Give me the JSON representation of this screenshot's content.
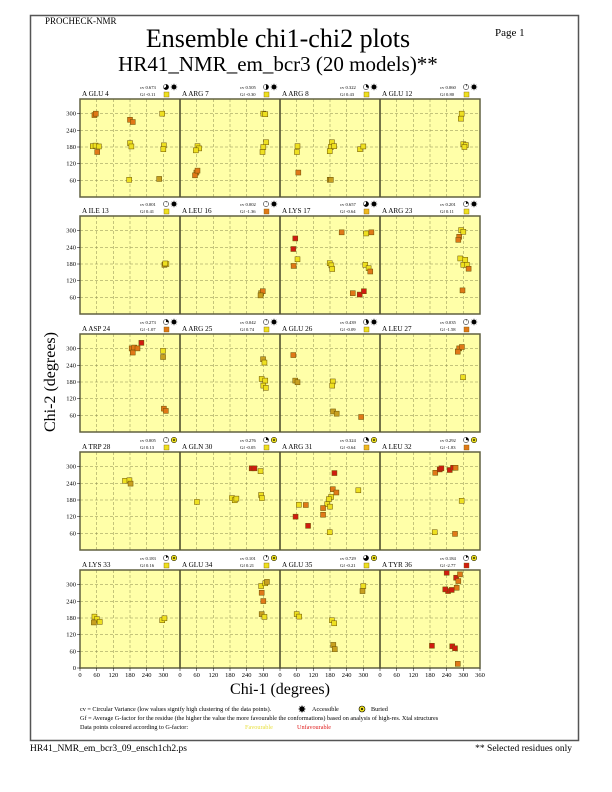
{
  "header": {
    "program": "PROCHECK-NMR",
    "page": "Page  1",
    "title": "Ensemble chi1-chi2 plots",
    "subtitle": "HR41_NMR_em_bcr3 (20 models)**"
  },
  "footer": {
    "filename": "HR41_NMR_em_bcr3_09_ensch1ch2.ps",
    "note": "** Selected residues only"
  },
  "legend": {
    "cv_text": "cv = Circular Variance (low values signify high clustering of the data points).",
    "accessible": "Accessible",
    "buried": "Buried",
    "gf_text": "Gf = Average G-factor for the residue (the higher the value the more favourable the conformations) based on analysis of high-res. Xtal structures",
    "colour_text": "Data points coloured according to G-factor:",
    "favourable": "Favourable",
    "unfavourable": "Unfavourable",
    "favourable_color": "#f4ee30",
    "unfavourable_color": "#e02020"
  },
  "colors": {
    "background": "#ffffa8",
    "y": "#eee020",
    "k": "#c8a020",
    "o": "#e07818",
    "r": "#d01c10"
  },
  "chart_data": {
    "type": "scatter",
    "xlabel": "Chi-1 (degrees)",
    "ylabel": "Chi-2 (degrees)",
    "xlim": [
      0,
      360
    ],
    "ylim": [
      0,
      360
    ],
    "xticks": [
      "0",
      "60",
      "120",
      "180",
      "240",
      "300",
      "360"
    ],
    "yticks": [
      "0",
      "60",
      "120",
      "180",
      "240",
      "300"
    ],
    "grid": true,
    "panels": [
      {
        "label": "A GLU 4",
        "cv": "cv 0.673",
        "gf": "Gf -0.11",
        "gf_color": "#eee020",
        "access": "accessible",
        "points": [
          [
            52,
            295,
            "o"
          ],
          [
            57,
            300,
            "o"
          ],
          [
            180,
            278,
            "o"
          ],
          [
            190,
            270,
            "o"
          ],
          [
            46,
            183,
            "y"
          ],
          [
            56,
            185,
            "y"
          ],
          [
            68,
            182,
            "y"
          ],
          [
            62,
            162,
            "o"
          ],
          [
            180,
            194,
            "y"
          ],
          [
            185,
            182,
            "y"
          ],
          [
            177,
            62,
            "y"
          ],
          [
            296,
            300,
            "y"
          ],
          [
            302,
            186,
            "y"
          ],
          [
            300,
            172,
            "y"
          ],
          [
            285,
            65,
            "k"
          ]
        ]
      },
      {
        "label": "A ARG 7",
        "cv": "cv 0.505",
        "gf": "Gf -0.30",
        "gf_color": "#eee020",
        "access": "accessible",
        "points": [
          [
            63,
            183,
            "y"
          ],
          [
            69,
            175,
            "y"
          ],
          [
            57,
            168,
            "y"
          ],
          [
            59,
            88,
            "o"
          ],
          [
            54,
            78,
            "o"
          ],
          [
            63,
            95,
            "o"
          ],
          [
            300,
            300,
            "y"
          ],
          [
            307,
            298,
            "y"
          ],
          [
            310,
            197,
            "y"
          ],
          [
            300,
            180,
            "y"
          ],
          [
            297,
            162,
            "y"
          ]
        ]
      },
      {
        "label": "A ARG 8",
        "cv": "cv 0.322",
        "gf": "Gf 0.43",
        "gf_color": "#eee020",
        "access": "accessible",
        "points": [
          [
            63,
            183,
            "y"
          ],
          [
            61,
            162,
            "y"
          ],
          [
            66,
            88,
            "o"
          ],
          [
            187,
            197,
            "y"
          ],
          [
            183,
            180,
            "y"
          ],
          [
            195,
            183,
            "y"
          ],
          [
            179,
            165,
            "y"
          ],
          [
            179,
            62,
            "k"
          ],
          [
            183,
            62,
            "k"
          ],
          [
            288,
            172,
            "y"
          ],
          [
            300,
            182,
            "y"
          ]
        ]
      },
      {
        "label": "A GLU 12",
        "cv": "cv 0.060",
        "gf": "Gf 0.80",
        "gf_color": "#eee020",
        "access": "accessible",
        "points": [
          [
            294,
            300,
            "y"
          ],
          [
            291,
            282,
            "y"
          ],
          [
            300,
            190,
            "y"
          ],
          [
            309,
            187,
            "y"
          ],
          [
            304,
            180,
            "y"
          ]
        ]
      },
      {
        "label": "A ILE 13",
        "cv": "cv 0.001",
        "gf": "Gf 0.41",
        "gf_color": "#eee020",
        "access": "accessible",
        "points": [
          [
            304,
            177,
            "k"
          ],
          [
            311,
            180,
            "y"
          ],
          [
            307,
            182,
            "y"
          ]
        ]
      },
      {
        "label": "A LEU 16",
        "cv": "cv 0.002",
        "gf": "Gf -1.36",
        "gf_color": "#e07818",
        "access": "accessible",
        "points": [
          [
            292,
            75,
            "k"
          ],
          [
            298,
            82,
            "o"
          ],
          [
            290,
            67,
            "k"
          ]
        ]
      },
      {
        "label": "A LYS 17",
        "cv": "cv 0.657",
        "gf": "Gf -0.64",
        "gf_color": "#f0b820",
        "access": "accessible",
        "points": [
          [
            55,
            272,
            "r"
          ],
          [
            48,
            234,
            "r"
          ],
          [
            63,
            197,
            "y"
          ],
          [
            49,
            173,
            "o"
          ],
          [
            222,
            294,
            "o"
          ],
          [
            310,
            290,
            "y"
          ],
          [
            329,
            294,
            "o"
          ],
          [
            179,
            183,
            "y"
          ],
          [
            185,
            175,
            "y"
          ],
          [
            188,
            162,
            "y"
          ],
          [
            307,
            177,
            "y"
          ],
          [
            319,
            165,
            "y"
          ],
          [
            325,
            153,
            "o"
          ],
          [
            262,
            75,
            "o"
          ],
          [
            287,
            70,
            "r"
          ],
          [
            302,
            82,
            "r"
          ]
        ]
      },
      {
        "label": "A ARG 23",
        "cv": "cv 0.201",
        "gf": "Gf 0.11",
        "gf_color": "#eee020",
        "access": "accessible",
        "points": [
          [
            292,
            302,
            "y"
          ],
          [
            300,
            296,
            "y"
          ],
          [
            285,
            278,
            "o"
          ],
          [
            282,
            267,
            "o"
          ],
          [
            289,
            200,
            "y"
          ],
          [
            307,
            195,
            "y"
          ],
          [
            300,
            177,
            "y"
          ],
          [
            313,
            177,
            "y"
          ],
          [
            319,
            163,
            "o"
          ],
          [
            297,
            85,
            "o"
          ]
        ]
      },
      {
        "label": "A ASP 24",
        "cv": "cv 0.273",
        "gf": "Gf -1.07",
        "gf_color": "#e07818",
        "access": "accessible",
        "points": [
          [
            186,
            301,
            "o"
          ],
          [
            195,
            304,
            "o"
          ],
          [
            190,
            286,
            "o"
          ],
          [
            207,
            301,
            "o"
          ],
          [
            221,
            321,
            "r"
          ],
          [
            299,
            292,
            "y"
          ],
          [
            299,
            270,
            "k"
          ],
          [
            302,
            84,
            "o"
          ],
          [
            309,
            76,
            "o"
          ]
        ]
      },
      {
        "label": "A ARG 25",
        "cv": "cv 0.042",
        "gf": "Gf 0.74",
        "gf_color": "#eee020",
        "access": "accessible",
        "points": [
          [
            299,
            262,
            "k"
          ],
          [
            304,
            250,
            "y"
          ],
          [
            294,
            191,
            "y"
          ],
          [
            307,
            185,
            "y"
          ],
          [
            300,
            167,
            "y"
          ],
          [
            309,
            159,
            "y"
          ]
        ]
      },
      {
        "label": "A GLU 26",
        "cv": "cv 0.439",
        "gf": "Gf -0.09",
        "gf_color": "#eee020",
        "access": "accessible",
        "points": [
          [
            48,
            277,
            "o"
          ],
          [
            55,
            185,
            "k"
          ],
          [
            63,
            179,
            "k"
          ],
          [
            190,
            182,
            "y"
          ],
          [
            188,
            167,
            "y"
          ],
          [
            191,
            74,
            "k"
          ],
          [
            204,
            66,
            "k"
          ],
          [
            292,
            54,
            "o"
          ]
        ]
      },
      {
        "label": "A LEU 27",
        "cv": "cv 0.035",
        "gf": "Gf -1.58",
        "gf_color": "#e07818",
        "access": "accessible",
        "points": [
          [
            285,
            301,
            "o"
          ],
          [
            295,
            306,
            "o"
          ],
          [
            280,
            289,
            "o"
          ],
          [
            299,
            197,
            "y"
          ]
        ]
      },
      {
        "label": "A TRP 28",
        "cv": "cv 0.005",
        "gf": "Gf 0.13",
        "gf_color": "#eee020",
        "access": "buried",
        "points": [
          [
            162,
            249,
            "y"
          ],
          [
            178,
            251,
            "y"
          ],
          [
            182,
            239,
            "k"
          ]
        ]
      },
      {
        "label": "A GLN 30",
        "cv": "cv 0.276",
        "gf": "Gf -0.05",
        "gf_color": "#eee020",
        "access": "buried",
        "points": [
          [
            61,
            173,
            "y"
          ],
          [
            187,
            187,
            "y"
          ],
          [
            197,
            179,
            "y"
          ],
          [
            203,
            185,
            "y"
          ],
          [
            258,
            294,
            "r"
          ],
          [
            268,
            294,
            "r"
          ],
          [
            290,
            284,
            "y"
          ],
          [
            292,
            198,
            "y"
          ],
          [
            295,
            187,
            "y"
          ]
        ]
      },
      {
        "label": "A ARG 31",
        "cv": "cv 0.324",
        "gf": "Gf -0.64",
        "gf_color": "#f0b820",
        "access": "buried",
        "points": [
          [
            196,
            277,
            "r"
          ],
          [
            190,
            219,
            "o"
          ],
          [
            203,
            207,
            "o"
          ],
          [
            282,
            215,
            "y"
          ],
          [
            184,
            191,
            "y"
          ],
          [
            176,
            183,
            "y"
          ],
          [
            170,
            165,
            "y"
          ],
          [
            180,
            156,
            "y"
          ],
          [
            155,
            151,
            "o"
          ],
          [
            68,
            163,
            "y"
          ],
          [
            93,
            162,
            "o"
          ],
          [
            155,
            127,
            "o"
          ],
          [
            56,
            120,
            "r"
          ],
          [
            101,
            87,
            "r"
          ],
          [
            179,
            64,
            "y"
          ]
        ]
      },
      {
        "label": "A LEU 32",
        "cv": "cv 0.292",
        "gf": "Gf -1.83",
        "gf_color": "#e07818",
        "access": "buried",
        "points": [
          [
            199,
            278,
            "o"
          ],
          [
            215,
            290,
            "r"
          ],
          [
            221,
            294,
            "r"
          ],
          [
            251,
            288,
            "r"
          ],
          [
            263,
            296,
            "r"
          ],
          [
            272,
            296,
            "o"
          ],
          [
            294,
            177,
            "y"
          ],
          [
            197,
            64,
            "y"
          ],
          [
            270,
            58,
            "o"
          ]
        ]
      },
      {
        "label": "A LYS 33",
        "cv": "cv 0.183",
        "gf": "Gf 0.16",
        "gf_color": "#eee020",
        "access": "buried",
        "points": [
          [
            52,
            185,
            "y"
          ],
          [
            61,
            176,
            "y"
          ],
          [
            50,
            164,
            "k"
          ],
          [
            71,
            166,
            "y"
          ],
          [
            296,
            172,
            "y"
          ],
          [
            304,
            179,
            "y"
          ]
        ]
      },
      {
        "label": "A GLU 34",
        "cv": "cv 0.101",
        "gf": "Gf 0.21",
        "gf_color": "#eee020",
        "access": "buried",
        "points": [
          [
            292,
            295,
            "y"
          ],
          [
            307,
            305,
            "y"
          ],
          [
            313,
            310,
            "k"
          ],
          [
            294,
            271,
            "o"
          ],
          [
            300,
            241,
            "o"
          ],
          [
            294,
            194,
            "k"
          ],
          [
            304,
            184,
            "y"
          ]
        ]
      },
      {
        "label": "A GLU 35",
        "cv": "cv 0.729",
        "gf": "Gf -0.21",
        "gf_color": "#eee020",
        "access": "buried",
        "points": [
          [
            60,
            194,
            "y"
          ],
          [
            69,
            185,
            "y"
          ],
          [
            187,
            172,
            "y"
          ],
          [
            195,
            161,
            "y"
          ],
          [
            192,
            83,
            "k"
          ],
          [
            197,
            68,
            "k"
          ],
          [
            300,
            295,
            "y"
          ],
          [
            297,
            277,
            "k"
          ]
        ]
      },
      {
        "label": "A TYR 36",
        "cv": "cv 0.184",
        "gf": "Gf -2.77",
        "gf_color": "#d01c10",
        "access": "buried",
        "points": [
          [
            240,
            343,
            "r"
          ],
          [
            274,
            325,
            "r"
          ],
          [
            288,
            337,
            "o"
          ],
          [
            282,
            313,
            "o"
          ],
          [
            276,
            289,
            "o"
          ],
          [
            245,
            277,
            "r"
          ],
          [
            235,
            283,
            "r"
          ],
          [
            258,
            281,
            "r"
          ],
          [
            187,
            80,
            "r"
          ],
          [
            260,
            78,
            "r"
          ],
          [
            270,
            71,
            "r"
          ],
          [
            280,
            15,
            "o"
          ]
        ]
      }
    ]
  }
}
